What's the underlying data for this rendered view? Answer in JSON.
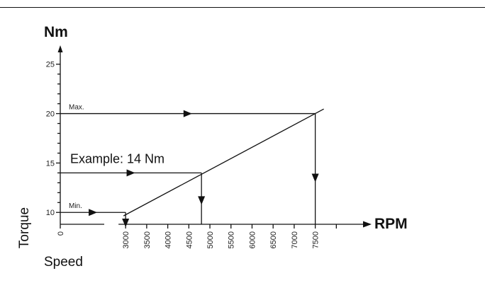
{
  "chart_data": {
    "type": "line",
    "title": "",
    "y_unit": "Nm",
    "x_unit": "RPM",
    "ylabel": "Torque",
    "xlabel": "Speed",
    "x_ticks": [
      "0",
      "3000",
      "3500",
      "4000",
      "4500",
      "5000",
      "5500",
      "6000",
      "6500",
      "7000",
      "7500"
    ],
    "y_tick_labels": [
      "10",
      "15",
      "20",
      "25"
    ],
    "y_ticks_numeric": [
      10,
      11,
      12,
      13,
      14,
      15,
      16,
      17,
      18,
      19,
      20,
      21,
      22,
      23,
      24,
      25
    ],
    "ylim": [
      8.8,
      26.7
    ],
    "xlim": [
      1500,
      8600
    ],
    "grid": false,
    "series": [
      {
        "x": [
          2950,
          7500
        ],
        "y": [
          9.65,
          20
        ]
      }
    ],
    "annotations": [
      {
        "text": "Max.",
        "torque": 20,
        "speed": 7500,
        "size": "small"
      },
      {
        "text": "Example: 14 Nm",
        "torque": 14,
        "speed": 4800,
        "size": "large"
      },
      {
        "text": "Min.",
        "torque": 10,
        "speed": 3000,
        "size": "small"
      }
    ]
  }
}
